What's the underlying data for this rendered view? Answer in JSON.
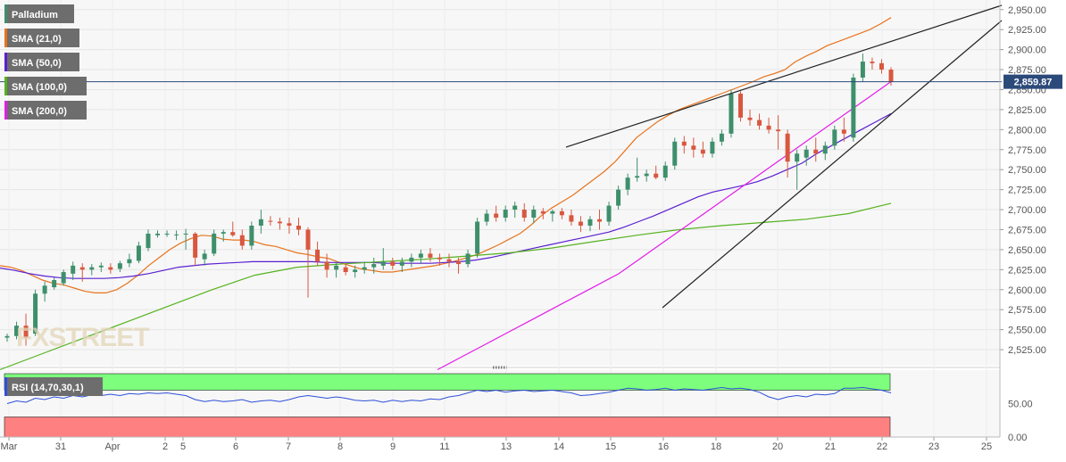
{
  "chart_data": {
    "type": "candlestick",
    "instrument": "Palladium",
    "current_price_label": "2,859.87",
    "current_price": 2859.87,
    "y_ticks": [
      2525,
      2550,
      2575,
      2600,
      2625,
      2650,
      2675,
      2700,
      2725,
      2750,
      2775,
      2800,
      2825,
      2850,
      2875,
      2900,
      2925,
      2950
    ],
    "y_tick_labels": [
      "2,525.00",
      "2,550.00",
      "2,575.00",
      "2,600.00",
      "2,625.00",
      "2,650.00",
      "2,675.00",
      "2,700.00",
      "2,725.00",
      "2,750.00",
      "2,775.00",
      "2,800.00",
      "2,825.00",
      "2,850.00",
      "2,875.00",
      "2,900.00",
      "2,925.00",
      "2,950.00"
    ],
    "ylim": [
      2505,
      2962
    ],
    "x_labels": [
      "Mar",
      "31",
      "Apr",
      "2",
      "5",
      "6",
      "7",
      "8",
      "9",
      "11",
      "13",
      "14",
      "15",
      "16",
      "18",
      "20",
      "21",
      "22",
      "23",
      "25"
    ],
    "indicators": [
      {
        "name": "SMA (21,0)",
        "color": "#e8731c"
      },
      {
        "name": "SMA (50,0)",
        "color": "#5a1fd1"
      },
      {
        "name": "SMA (100,0)",
        "color": "#55b21f"
      },
      {
        "name": "SMA (200,0)",
        "color": "#e21ee8"
      }
    ],
    "colors": {
      "up": "#3e8f6c",
      "down": "#d9573f",
      "rsi": "#2d4fd8",
      "overbought": "#7dff7d",
      "oversold": "#ff8080"
    },
    "candles": [
      [
        2540,
        2545,
        2535,
        2542
      ],
      [
        2542,
        2560,
        2538,
        2555
      ],
      [
        2555,
        2570,
        2530,
        2540
      ],
      [
        2545,
        2600,
        2542,
        2595
      ],
      [
        2595,
        2610,
        2585,
        2605
      ],
      [
        2603,
        2615,
        2600,
        2612
      ],
      [
        2608,
        2625,
        2605,
        2622
      ],
      [
        2620,
        2635,
        2612,
        2630
      ],
      [
        2628,
        2633,
        2610,
        2625
      ],
      [
        2625,
        2632,
        2618,
        2628
      ],
      [
        2628,
        2634,
        2622,
        2630
      ],
      [
        2628,
        2633,
        2620,
        2625
      ],
      [
        2626,
        2636,
        2622,
        2633
      ],
      [
        2633,
        2645,
        2628,
        2638
      ],
      [
        2636,
        2660,
        2633,
        2655
      ],
      [
        2652,
        2675,
        2648,
        2670
      ],
      [
        2668,
        2674,
        2665,
        2670
      ],
      [
        2670,
        2674,
        2666,
        2670
      ],
      [
        2668,
        2674,
        2662,
        2669
      ],
      [
        2669,
        2676,
        2650,
        2670
      ],
      [
        2670,
        2672,
        2630,
        2640
      ],
      [
        2638,
        2650,
        2630,
        2645
      ],
      [
        2645,
        2675,
        2642,
        2670
      ],
      [
        2670,
        2675,
        2660,
        2672
      ],
      [
        2672,
        2685,
        2666,
        2668
      ],
      [
        2668,
        2675,
        2650,
        2655
      ],
      [
        2655,
        2685,
        2650,
        2680
      ],
      [
        2680,
        2700,
        2670,
        2688
      ],
      [
        2686,
        2692,
        2680,
        2685
      ],
      [
        2685,
        2690,
        2675,
        2683
      ],
      [
        2683,
        2690,
        2670,
        2680
      ],
      [
        2680,
        2690,
        2668,
        2675
      ],
      [
        2675,
        2678,
        2590,
        2650
      ],
      [
        2650,
        2660,
        2630,
        2635
      ],
      [
        2635,
        2645,
        2615,
        2625
      ],
      [
        2625,
        2635,
        2615,
        2630
      ],
      [
        2628,
        2632,
        2618,
        2622
      ],
      [
        2622,
        2630,
        2615,
        2625
      ],
      [
        2625,
        2635,
        2620,
        2628
      ],
      [
        2628,
        2640,
        2620,
        2632
      ],
      [
        2630,
        2652,
        2625,
        2635
      ],
      [
        2635,
        2640,
        2625,
        2630
      ],
      [
        2630,
        2640,
        2622,
        2635
      ],
      [
        2635,
        2645,
        2628,
        2640
      ],
      [
        2640,
        2650,
        2632,
        2645
      ],
      [
        2645,
        2652,
        2635,
        2640
      ],
      [
        2640,
        2645,
        2630,
        2638
      ],
      [
        2638,
        2645,
        2628,
        2635
      ],
      [
        2635,
        2640,
        2620,
        2632
      ],
      [
        2632,
        2650,
        2628,
        2645
      ],
      [
        2645,
        2690,
        2640,
        2685
      ],
      [
        2685,
        2700,
        2680,
        2695
      ],
      [
        2695,
        2705,
        2685,
        2690
      ],
      [
        2690,
        2705,
        2685,
        2700
      ],
      [
        2700,
        2710,
        2690,
        2705
      ],
      [
        2700,
        2708,
        2685,
        2690
      ],
      [
        2690,
        2705,
        2683,
        2700
      ],
      [
        2698,
        2702,
        2688,
        2695
      ],
      [
        2695,
        2700,
        2685,
        2698
      ],
      [
        2698,
        2702,
        2688,
        2693
      ],
      [
        2693,
        2700,
        2680,
        2685
      ],
      [
        2685,
        2692,
        2672,
        2680
      ],
      [
        2680,
        2692,
        2673,
        2688
      ],
      [
        2688,
        2700,
        2675,
        2685
      ],
      [
        2685,
        2710,
        2680,
        2705
      ],
      [
        2705,
        2730,
        2700,
        2725
      ],
      [
        2725,
        2745,
        2718,
        2740
      ],
      [
        2740,
        2765,
        2735,
        2742
      ],
      [
        2742,
        2750,
        2735,
        2745
      ],
      [
        2745,
        2755,
        2738,
        2740
      ],
      [
        2740,
        2760,
        2736,
        2755
      ],
      [
        2755,
        2790,
        2750,
        2785
      ],
      [
        2785,
        2792,
        2770,
        2780
      ],
      [
        2780,
        2790,
        2765,
        2775
      ],
      [
        2775,
        2785,
        2765,
        2770
      ],
      [
        2770,
        2790,
        2765,
        2785
      ],
      [
        2785,
        2800,
        2780,
        2795
      ],
      [
        2795,
        2850,
        2790,
        2845
      ],
      [
        2845,
        2848,
        2810,
        2815
      ],
      [
        2815,
        2825,
        2805,
        2812
      ],
      [
        2812,
        2820,
        2800,
        2805
      ],
      [
        2805,
        2815,
        2795,
        2800
      ],
      [
        2800,
        2818,
        2775,
        2798
      ],
      [
        2795,
        2800,
        2740,
        2760
      ],
      [
        2760,
        2775,
        2725,
        2770
      ],
      [
        2765,
        2780,
        2755,
        2775
      ],
      [
        2775,
        2790,
        2760,
        2770
      ],
      [
        2770,
        2785,
        2762,
        2780
      ],
      [
        2780,
        2805,
        2775,
        2800
      ],
      [
        2800,
        2815,
        2785,
        2795
      ],
      [
        2790,
        2870,
        2785,
        2865
      ],
      [
        2865,
        2895,
        2860,
        2885
      ],
      [
        2885,
        2890,
        2875,
        2883
      ],
      [
        2883,
        2888,
        2870,
        2875
      ],
      [
        2875,
        2878,
        2855,
        2860
      ]
    ],
    "sma21": [
      2630,
      2628,
      2624,
      2618,
      2612,
      2608,
      2606,
      2602,
      2598,
      2596,
      2596,
      2600,
      2608,
      2618,
      2630,
      2640,
      2650,
      2658,
      2664,
      2668,
      2667,
      2663,
      2662,
      2662,
      2660,
      2656,
      2654,
      2650,
      2646,
      2644,
      2641,
      2639,
      2634,
      2630,
      2626,
      2624,
      2622,
      2622,
      2624,
      2626,
      2628,
      2630,
      2633,
      2636,
      2640,
      2644,
      2650,
      2656,
      2663,
      2670,
      2680,
      2692,
      2702,
      2710,
      2718,
      2728,
      2738,
      2748,
      2760,
      2775,
      2790,
      2800,
      2810,
      2818,
      2825,
      2830,
      2835,
      2840,
      2845,
      2850,
      2855,
      2860,
      2866,
      2870,
      2875,
      2885,
      2892,
      2898,
      2905,
      2910,
      2915,
      2920,
      2925,
      2932,
      2940
    ],
    "sma50": [
      2627,
      2624,
      2620,
      2617,
      2615,
      2614,
      2614,
      2614,
      2615,
      2617,
      2620,
      2624,
      2628,
      2630,
      2632,
      2633,
      2634,
      2635,
      2635,
      2635,
      2635,
      2635,
      2634,
      2634,
      2634,
      2634,
      2633,
      2633,
      2633,
      2633,
      2634,
      2635,
      2637,
      2640,
      2644,
      2648,
      2652,
      2656,
      2660,
      2664,
      2668,
      2672,
      2678,
      2685,
      2692,
      2700,
      2708,
      2716,
      2722,
      2726,
      2730,
      2735,
      2742,
      2750,
      2758,
      2770,
      2780,
      2790,
      2800,
      2810,
      2820
    ],
    "sma100": [
      2500,
      2520,
      2540,
      2560,
      2580,
      2600,
      2618,
      2628,
      2632,
      2635,
      2638,
      2642,
      2646,
      2652,
      2660,
      2668,
      2675,
      2680,
      2684,
      2688,
      2695,
      2708
    ],
    "sma200": [
      2500,
      2515,
      2530,
      2545,
      2560,
      2575,
      2590,
      2605,
      2620,
      2640,
      2660,
      2680,
      2700,
      2720,
      2740,
      2760,
      2780,
      2800,
      2820,
      2840,
      2860
    ],
    "rsi": [
      50,
      54,
      52,
      58,
      56,
      60,
      58,
      62,
      60,
      63,
      62,
      64,
      62,
      65,
      64,
      66,
      65,
      66,
      64,
      62,
      56,
      53,
      55,
      53,
      54,
      56,
      52,
      54,
      55,
      53,
      56,
      60,
      62,
      60,
      58,
      60,
      58,
      55,
      54,
      55,
      52,
      55,
      53,
      55,
      54,
      57,
      56,
      60,
      62,
      66,
      70,
      68,
      70,
      67,
      69,
      70,
      68,
      69,
      70,
      68,
      66,
      62,
      63,
      65,
      67,
      70,
      73,
      72,
      70,
      71,
      73,
      70,
      72,
      71,
      70,
      72,
      74,
      72,
      73,
      71,
      67,
      60,
      56,
      60,
      62,
      60,
      64,
      63,
      65,
      73,
      73,
      74,
      72,
      70,
      66
    ],
    "rsi_panel": {
      "label": "RSI (14,70,30,1)",
      "ticks": [
        0,
        50
      ],
      "tick_labels": [
        "0.00",
        "50.00"
      ]
    }
  }
}
